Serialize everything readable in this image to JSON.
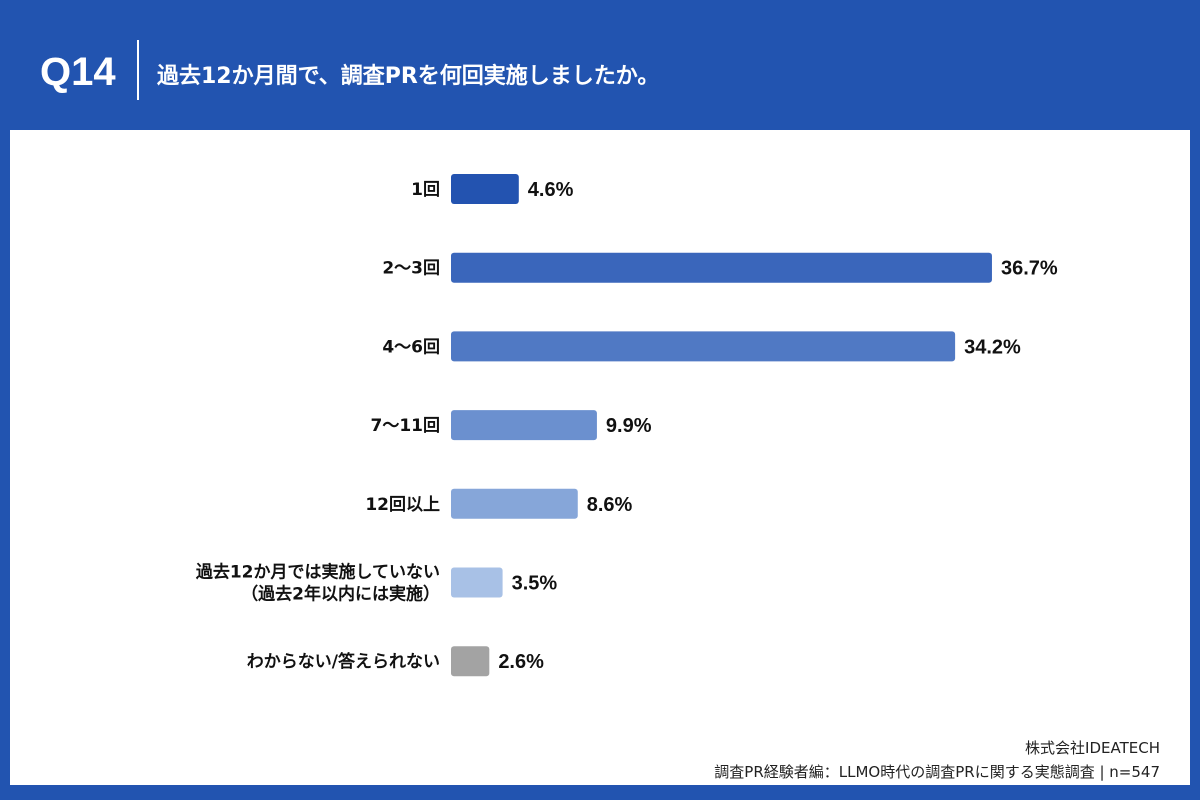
{
  "header": {
    "question_no": "Q14",
    "title": "過去12か月間で、調査PRを何回実施しましたか。"
  },
  "chart_data": {
    "type": "bar",
    "orientation": "horizontal",
    "categories": [
      [
        "1回"
      ],
      [
        "2〜3回"
      ],
      [
        "4〜6回"
      ],
      [
        "7〜11回"
      ],
      [
        "12回以上"
      ],
      [
        "過去12か月では実施していない",
        "（過去2年以内には実施）"
      ],
      [
        "わからない/答えられない"
      ]
    ],
    "values": [
      4.6,
      36.7,
      34.2,
      9.9,
      8.6,
      3.5,
      2.6
    ],
    "value_labels": [
      "4.6%",
      "36.7%",
      "34.2%",
      "9.9%",
      "8.6%",
      "3.5%",
      "2.6%"
    ],
    "unit": "%",
    "colors": [
      "#2353b0",
      "#3a66bb",
      "#5079c4",
      "#6b90cf",
      "#86a6d9",
      "#a8c1e6",
      "#a3a3a3"
    ],
    "grid": false,
    "legend": "none"
  },
  "footer": {
    "company": "株式会社IDEATECH",
    "source": "調査PR経験者編：LLMO時代の調査PRに関する実態調査 | n=547"
  }
}
